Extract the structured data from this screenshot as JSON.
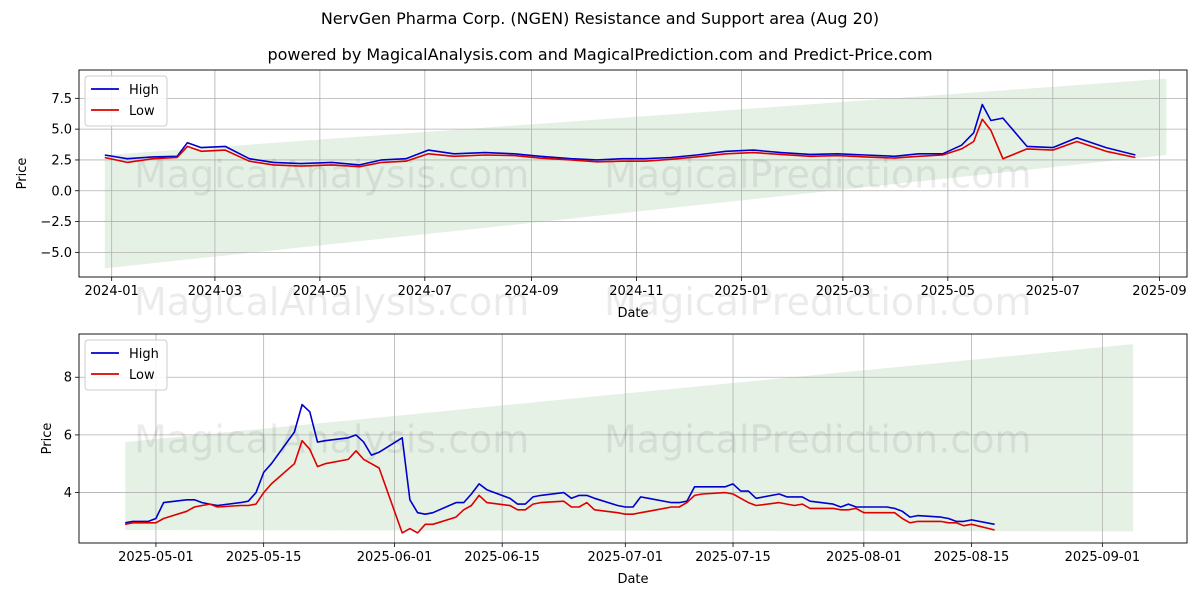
{
  "figure": {
    "title": "NervGen Pharma Corp. (NGEN) Resistance and Support area (Aug 20)",
    "subtitle": "powered by MagicalAnalysis.com and MagicalPrediction.com and Predict-Price.com",
    "watermarks": [
      "MagicalAnalysis.com",
      "MagicalPrediction.com"
    ]
  },
  "colors": {
    "high": "#0000cc",
    "low": "#dd0000",
    "band": "#2e8b2e",
    "grid": "#b0b0b0"
  },
  "chart_data": [
    {
      "type": "line",
      "xlabel": "Date",
      "ylabel": "Price",
      "x_type": "date",
      "xlim": [
        "2023-12-13",
        "2025-09-17"
      ],
      "ylim": [
        -7.0,
        9.8
      ],
      "x_ticks": [
        "2024-01",
        "2024-03",
        "2024-05",
        "2024-07",
        "2024-09",
        "2024-11",
        "2025-01",
        "2025-03",
        "2025-05",
        "2025-07",
        "2025-09"
      ],
      "y_ticks": [
        7.5,
        5.0,
        2.5,
        0.0,
        -2.5,
        -5.0
      ],
      "grid": true,
      "legend": "top-left",
      "band": {
        "x": [
          "2023-12-28",
          "2025-09-05"
        ],
        "upper": [
          2.9,
          9.1
        ],
        "lower": [
          -6.3,
          2.9
        ]
      },
      "x": [
        "2023-12-28",
        "2024-01-10",
        "2024-01-25",
        "2024-02-08",
        "2024-02-14",
        "2024-02-22",
        "2024-03-07",
        "2024-03-21",
        "2024-04-04",
        "2024-04-20",
        "2024-05-08",
        "2024-05-24",
        "2024-06-06",
        "2024-06-20",
        "2024-07-03",
        "2024-07-18",
        "2024-08-05",
        "2024-08-22",
        "2024-09-06",
        "2024-09-24",
        "2024-10-09",
        "2024-10-24",
        "2024-11-06",
        "2024-11-21",
        "2024-12-06",
        "2024-12-23",
        "2025-01-08",
        "2025-01-24",
        "2025-02-10",
        "2025-02-26",
        "2025-03-14",
        "2025-03-31",
        "2025-04-14",
        "2025-04-28",
        "2025-05-09",
        "2025-05-16",
        "2025-05-21",
        "2025-05-26",
        "2025-06-02",
        "2025-06-16",
        "2025-07-01",
        "2025-07-15",
        "2025-08-01",
        "2025-08-18"
      ],
      "series": [
        {
          "name": "High",
          "values": [
            2.9,
            2.6,
            2.75,
            2.8,
            3.9,
            3.5,
            3.6,
            2.6,
            2.3,
            2.2,
            2.3,
            2.1,
            2.5,
            2.6,
            3.3,
            3.0,
            3.1,
            3.0,
            2.8,
            2.6,
            2.5,
            2.6,
            2.6,
            2.7,
            2.9,
            3.2,
            3.3,
            3.1,
            2.95,
            3.0,
            2.9,
            2.8,
            3.0,
            3.0,
            3.7,
            4.7,
            7.0,
            5.7,
            5.9,
            3.6,
            3.5,
            4.3,
            3.5,
            2.9
          ]
        },
        {
          "name": "Low",
          "values": [
            2.7,
            2.3,
            2.6,
            2.7,
            3.6,
            3.2,
            3.3,
            2.4,
            2.1,
            2.0,
            2.1,
            1.95,
            2.3,
            2.4,
            3.0,
            2.8,
            2.9,
            2.85,
            2.65,
            2.5,
            2.35,
            2.4,
            2.4,
            2.55,
            2.75,
            3.0,
            3.1,
            2.95,
            2.8,
            2.85,
            2.75,
            2.65,
            2.8,
            2.9,
            3.4,
            4.0,
            5.8,
            4.9,
            2.6,
            3.4,
            3.3,
            4.0,
            3.2,
            2.7
          ]
        }
      ]
    },
    {
      "type": "line",
      "xlabel": "Date",
      "ylabel": "Price",
      "x_type": "date",
      "xlim": [
        "2025-04-21",
        "2025-09-12"
      ],
      "ylim": [
        2.25,
        9.5
      ],
      "x_ticks": [
        "2025-05-01",
        "2025-05-15",
        "2025-06-01",
        "2025-06-15",
        "2025-07-01",
        "2025-07-15",
        "2025-08-01",
        "2025-08-15",
        "2025-09-01"
      ],
      "y_ticks": [
        8,
        6,
        4
      ],
      "grid": true,
      "legend": "top-left",
      "band": {
        "x": [
          "2025-04-27",
          "2025-09-05"
        ],
        "upper": [
          5.75,
          9.15
        ],
        "lower": [
          2.7,
          2.65
        ]
      },
      "x": [
        "2025-04-27",
        "2025-04-28",
        "2025-04-30",
        "2025-05-01",
        "2025-05-02",
        "2025-05-05",
        "2025-05-06",
        "2025-05-07",
        "2025-05-08",
        "2025-05-09",
        "2025-05-12",
        "2025-05-13",
        "2025-05-14",
        "2025-05-15",
        "2025-05-16",
        "2025-05-19",
        "2025-05-20",
        "2025-05-21",
        "2025-05-22",
        "2025-05-23",
        "2025-05-26",
        "2025-05-27",
        "2025-05-28",
        "2025-05-29",
        "2025-05-30",
        "2025-06-02",
        "2025-06-03",
        "2025-06-04",
        "2025-06-05",
        "2025-06-06",
        "2025-06-09",
        "2025-06-10",
        "2025-06-11",
        "2025-06-12",
        "2025-06-13",
        "2025-06-16",
        "2025-06-17",
        "2025-06-18",
        "2025-06-19",
        "2025-06-20",
        "2025-06-23",
        "2025-06-24",
        "2025-06-25",
        "2025-06-26",
        "2025-06-27",
        "2025-06-30",
        "2025-07-01",
        "2025-07-02",
        "2025-07-03",
        "2025-07-04",
        "2025-07-07",
        "2025-07-08",
        "2025-07-09",
        "2025-07-10",
        "2025-07-11",
        "2025-07-14",
        "2025-07-15",
        "2025-07-16",
        "2025-07-17",
        "2025-07-18",
        "2025-07-21",
        "2025-07-22",
        "2025-07-23",
        "2025-07-24",
        "2025-07-25",
        "2025-07-28",
        "2025-07-29",
        "2025-07-30",
        "2025-07-31",
        "2025-08-01",
        "2025-08-04",
        "2025-08-05",
        "2025-08-06",
        "2025-08-07",
        "2025-08-08",
        "2025-08-11",
        "2025-08-12",
        "2025-08-13",
        "2025-08-14",
        "2025-08-15",
        "2025-08-18"
      ],
      "series": [
        {
          "name": "High",
          "values": [
            2.95,
            3.0,
            3.0,
            3.1,
            3.65,
            3.75,
            3.75,
            3.65,
            3.6,
            3.55,
            3.65,
            3.7,
            4.0,
            4.7,
            5.0,
            6.1,
            7.05,
            6.8,
            5.75,
            5.8,
            5.9,
            6.0,
            5.75,
            5.3,
            5.4,
            5.9,
            3.75,
            3.3,
            3.25,
            3.3,
            3.65,
            3.65,
            3.95,
            4.3,
            4.1,
            3.8,
            3.6,
            3.6,
            3.85,
            3.9,
            4.0,
            3.8,
            3.9,
            3.9,
            3.8,
            3.55,
            3.5,
            3.5,
            3.85,
            3.8,
            3.65,
            3.65,
            3.7,
            4.2,
            4.2,
            4.2,
            4.3,
            4.05,
            4.05,
            3.8,
            3.95,
            3.85,
            3.85,
            3.85,
            3.7,
            3.6,
            3.5,
            3.6,
            3.5,
            3.5,
            3.5,
            3.45,
            3.35,
            3.15,
            3.2,
            3.15,
            3.1,
            3.0,
            3.0,
            3.05,
            2.9
          ]
        },
        {
          "name": "Low",
          "values": [
            2.9,
            2.95,
            2.95,
            2.95,
            3.1,
            3.35,
            3.5,
            3.55,
            3.6,
            3.5,
            3.55,
            3.55,
            3.6,
            4.0,
            4.3,
            5.0,
            5.8,
            5.5,
            4.9,
            5.0,
            5.15,
            5.45,
            5.15,
            5.0,
            4.85,
            2.6,
            2.75,
            2.6,
            2.9,
            2.9,
            3.15,
            3.4,
            3.55,
            3.9,
            3.65,
            3.55,
            3.4,
            3.4,
            3.6,
            3.65,
            3.7,
            3.5,
            3.5,
            3.65,
            3.4,
            3.3,
            3.25,
            3.25,
            3.3,
            3.35,
            3.5,
            3.5,
            3.65,
            3.9,
            3.95,
            4.0,
            3.95,
            3.8,
            3.65,
            3.55,
            3.65,
            3.6,
            3.55,
            3.6,
            3.45,
            3.45,
            3.4,
            3.4,
            3.45,
            3.3,
            3.3,
            3.3,
            3.1,
            2.95,
            3.0,
            3.0,
            2.95,
            2.95,
            2.85,
            2.9,
            2.7
          ]
        }
      ]
    }
  ]
}
